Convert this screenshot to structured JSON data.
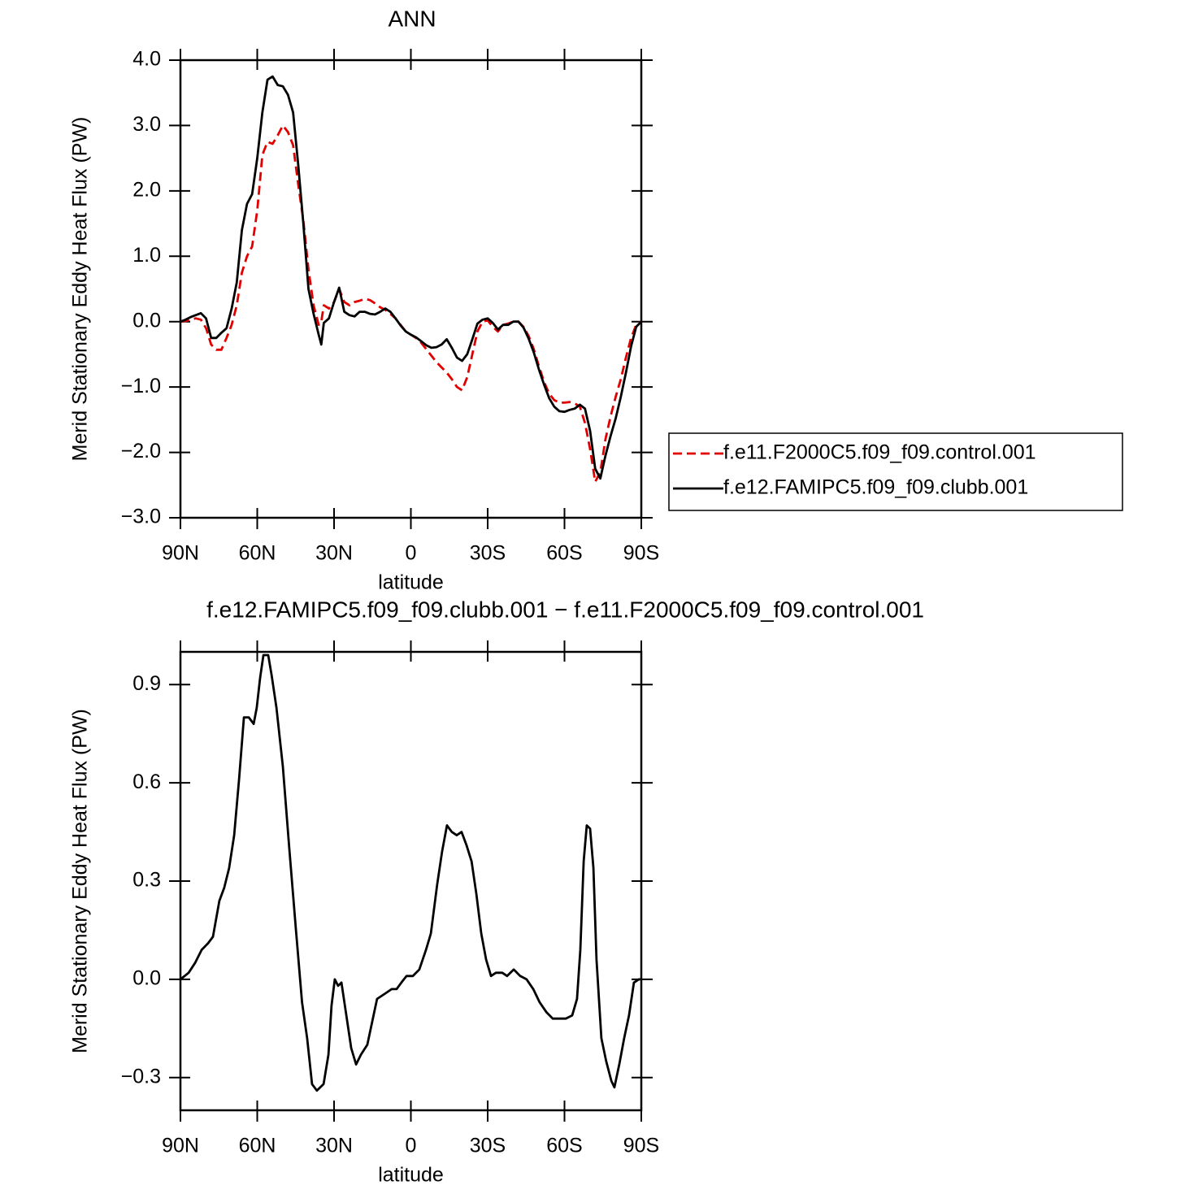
{
  "chart_data": [
    {
      "type": "line",
      "title": "ANN",
      "x_label": "latitude",
      "y_label": "Merid Stationary Eddy Heat Flux (PW)",
      "xlim": [
        90,
        -90
      ],
      "xticks": [
        {
          "value": 90,
          "label": "90N"
        },
        {
          "value": 60,
          "label": "60N"
        },
        {
          "value": 30,
          "label": "30N"
        },
        0,
        {
          "value": -30,
          "label": "30S"
        },
        {
          "value": -60,
          "label": "60S"
        },
        {
          "value": -90,
          "label": "90S"
        }
      ],
      "ylim": [
        -3,
        4
      ],
      "yticks": [
        {
          "value": 4,
          "label": "4.0"
        },
        {
          "value": 3,
          "label": "3.0"
        },
        {
          "value": 2,
          "label": "2.0"
        },
        {
          "value": 1,
          "label": "1.0"
        },
        {
          "value": 0,
          "label": "0.0"
        },
        {
          "value": -1,
          "label": "−1.0"
        },
        {
          "value": -2,
          "label": "−2.0"
        },
        {
          "value": -3,
          "label": "−3.0"
        }
      ],
      "grid": false,
      "legend": "right",
      "x": [
        90,
        88,
        86,
        84,
        82,
        80,
        78,
        76,
        74,
        72,
        70,
        68,
        66,
        64,
        62,
        60,
        58,
        56,
        54,
        52,
        50,
        48,
        46,
        44,
        42,
        40,
        38,
        36,
        35,
        34,
        32,
        30,
        28,
        26,
        24,
        22,
        20,
        18,
        16,
        14,
        12,
        10,
        8,
        6,
        4,
        2,
        0,
        -2,
        -4,
        -6,
        -8,
        -10,
        -12,
        -14,
        -16,
        -18,
        -20,
        -22,
        -24,
        -26,
        -28,
        -30,
        -32,
        -34,
        -36,
        -38,
        -40,
        -42,
        -44,
        -46,
        -48,
        -50,
        -52,
        -54,
        -56,
        -58,
        -60,
        -62,
        -64,
        -66,
        -68,
        -70,
        -72,
        -74,
        -76,
        -78,
        -80,
        -82,
        -84,
        -86,
        -88,
        -90
      ],
      "series": [
        {
          "name": "f.e11.F2000C5.f09_f09.control.001",
          "color": "#e00000",
          "line_style": "dashed",
          "values": [
            0,
            0.01,
            0.03,
            0.05,
            0.03,
            -0.1,
            -0.35,
            -0.43,
            -0.43,
            -0.25,
            -0.05,
            0.25,
            0.75,
            1.0,
            1.15,
            1.7,
            2.55,
            2.75,
            2.72,
            2.85,
            3.0,
            2.9,
            2.7,
            2.1,
            1.55,
            0.8,
            0.25,
            -0.05,
            0,
            0.25,
            0.2,
            0.3,
            0.5,
            0.3,
            0.25,
            0.3,
            0.32,
            0.35,
            0.33,
            0.28,
            0.22,
            0.18,
            0.12,
            0.05,
            -0.05,
            -0.15,
            -0.2,
            -0.25,
            -0.32,
            -0.42,
            -0.52,
            -0.62,
            -0.7,
            -0.78,
            -0.88,
            -1.0,
            -1.05,
            -0.85,
            -0.5,
            -0.15,
            0,
            0.02,
            -0.08,
            -0.15,
            -0.05,
            -0.03,
            0,
            0,
            -0.08,
            -0.22,
            -0.42,
            -0.68,
            -0.92,
            -1.1,
            -1.2,
            -1.24,
            -1.24,
            -1.23,
            -1.25,
            -1.3,
            -1.55,
            -1.95,
            -2.45,
            -2.3,
            -1.8,
            -1.45,
            -1.15,
            -0.88,
            -0.55,
            -0.25,
            -0.05,
            0
          ]
        },
        {
          "name": "f.e12.FAMIPC5.f09_f09.clubb.001",
          "color": "#000000",
          "line_style": "solid",
          "values": [
            0,
            0.03,
            0.07,
            0.1,
            0.13,
            0.05,
            -0.25,
            -0.25,
            -0.17,
            -0.1,
            0.2,
            0.6,
            1.4,
            1.8,
            1.95,
            2.5,
            3.2,
            3.7,
            3.75,
            3.62,
            3.6,
            3.47,
            3.2,
            2.4,
            1.5,
            0.5,
            0.12,
            -0.2,
            -0.35,
            -0.02,
            0.05,
            0.3,
            0.52,
            0.15,
            0.1,
            0.08,
            0.15,
            0.15,
            0.12,
            0.11,
            0.15,
            0.2,
            0.15,
            0.05,
            -0.06,
            -0.15,
            -0.2,
            -0.24,
            -0.3,
            -0.36,
            -0.4,
            -0.39,
            -0.35,
            -0.27,
            -0.4,
            -0.55,
            -0.6,
            -0.5,
            -0.27,
            -0.03,
            0.03,
            0.05,
            -0.02,
            -0.12,
            -0.05,
            -0.05,
            0,
            0,
            -0.09,
            -0.26,
            -0.47,
            -0.73,
            -0.96,
            -1.17,
            -1.3,
            -1.37,
            -1.38,
            -1.35,
            -1.33,
            -1.27,
            -1.33,
            -1.67,
            -2.25,
            -2.4,
            -2.05,
            -1.75,
            -1.48,
            -1.15,
            -0.78,
            -0.38,
            -0.08,
            0
          ]
        }
      ]
    },
    {
      "type": "line",
      "title": "f.e12.FAMIPC5.f09_f09.clubb.001 − f.e11.F2000C5.f09_f09.control.001",
      "x_label": "latitude",
      "y_label": "Merid Stationary Eddy Heat Flux (PW)",
      "xlim": [
        90,
        -90
      ],
      "xticks": [
        {
          "value": 90,
          "label": "90N"
        },
        {
          "value": 60,
          "label": "60N"
        },
        {
          "value": 30,
          "label": "30N"
        },
        0,
        {
          "value": -30,
          "label": "30S"
        },
        {
          "value": -60,
          "label": "60S"
        },
        {
          "value": -90,
          "label": "90S"
        }
      ],
      "ylim": [
        -0.4,
        1.0
      ],
      "yticks": [
        0.9,
        0.6,
        0.3,
        {
          "value": 0,
          "label": "0.0"
        },
        {
          "value": -0.3,
          "label": "−0.3"
        }
      ],
      "grid": false,
      "color": "#000000",
      "x": [
        90,
        86.8,
        84.3,
        81.7,
        79.2,
        77.3,
        74.8,
        72.9,
        71,
        69,
        67.1,
        65.2,
        63.3,
        61.4,
        60.2,
        58.9,
        57.6,
        55.7,
        54.4,
        52.5,
        50,
        47.5,
        45,
        42.5,
        40.5,
        38.6,
        36.7,
        34.1,
        32.2,
        31,
        29.7,
        28.4,
        27.1,
        25.2,
        23.3,
        21.4,
        19.5,
        17,
        15.1,
        13.2,
        11.3,
        9.4,
        7.5,
        5.6,
        3.7,
        1.7,
        -0.8,
        -3.3,
        -5.9,
        -7.8,
        -10.3,
        -12.2,
        -14.1,
        -16,
        -17.9,
        -19.8,
        -21.7,
        -23.7,
        -25.6,
        -27.5,
        -29.4,
        -31.3,
        -33.2,
        -35.7,
        -37.6,
        -40.2,
        -42.7,
        -45.2,
        -47.8,
        -50.3,
        -52.9,
        -55.4,
        -57.9,
        -60.5,
        -63,
        -64.9,
        -66.2,
        -67.5,
        -68.7,
        -70,
        -71.3,
        -72.5,
        -74.4,
        -76.3,
        -78.3,
        -79.5,
        -81.4,
        -83.3,
        -85.2,
        -87.1,
        -89,
        -90
      ],
      "values": [
        0,
        0.02,
        0.05,
        0.09,
        0.11,
        0.13,
        0.24,
        0.28,
        0.34,
        0.44,
        0.61,
        0.8,
        0.8,
        0.78,
        0.83,
        0.92,
        0.99,
        0.99,
        0.93,
        0.83,
        0.65,
        0.4,
        0.16,
        -0.07,
        -0.18,
        -0.32,
        -0.34,
        -0.32,
        -0.23,
        -0.08,
        0,
        -0.02,
        -0.01,
        -0.11,
        -0.21,
        -0.26,
        -0.23,
        -0.2,
        -0.13,
        -0.06,
        -0.05,
        -0.04,
        -0.03,
        -0.03,
        -0.01,
        0.01,
        0.01,
        0.03,
        0.09,
        0.14,
        0.29,
        0.39,
        0.47,
        0.45,
        0.44,
        0.45,
        0.41,
        0.36,
        0.26,
        0.14,
        0.06,
        0.01,
        0.02,
        0.02,
        0.01,
        0.03,
        0.01,
        0,
        -0.03,
        -0.07,
        -0.1,
        -0.12,
        -0.12,
        -0.12,
        -0.11,
        -0.06,
        0.09,
        0.36,
        0.47,
        0.46,
        0.34,
        0.06,
        -0.18,
        -0.25,
        -0.31,
        -0.33,
        -0.26,
        -0.18,
        -0.11,
        -0.01,
        0,
        0
      ]
    }
  ]
}
